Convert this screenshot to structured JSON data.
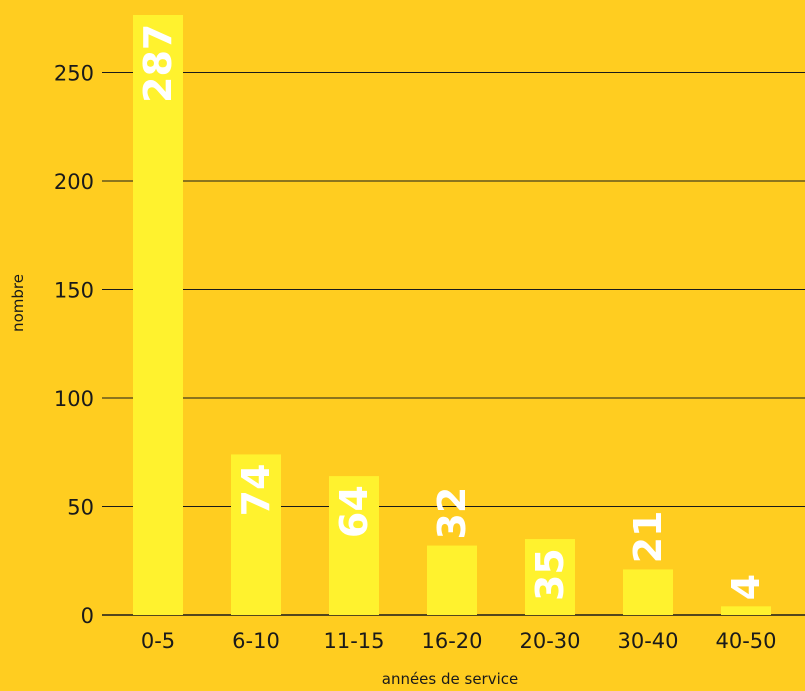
{
  "colors": {
    "background": "#FFCD20",
    "bar": "#FFF22E",
    "gridline": "#1A1A1A",
    "value_label": "#FFFFFF",
    "text": "#1A1A1A"
  },
  "chart_data": {
    "type": "bar",
    "title": "",
    "xlabel": "années de service",
    "ylabel": "nombre",
    "categories": [
      "0-5",
      "6-10",
      "11-15",
      "16-20",
      "20-30",
      "30-40",
      "40-50"
    ],
    "values": [
      287,
      74,
      64,
      32,
      35,
      21,
      4
    ],
    "value_labels": [
      "287",
      "74",
      "64",
      "32",
      "35",
      "21",
      "4"
    ],
    "ylim": [
      0,
      275
    ],
    "yticks": [
      0,
      50,
      100,
      150,
      200,
      250
    ],
    "ytick_labels": [
      "0",
      "50",
      "100",
      "150",
      "200",
      "250"
    ],
    "grid": true,
    "legend": "none",
    "value_label_orientation": "vertical"
  }
}
